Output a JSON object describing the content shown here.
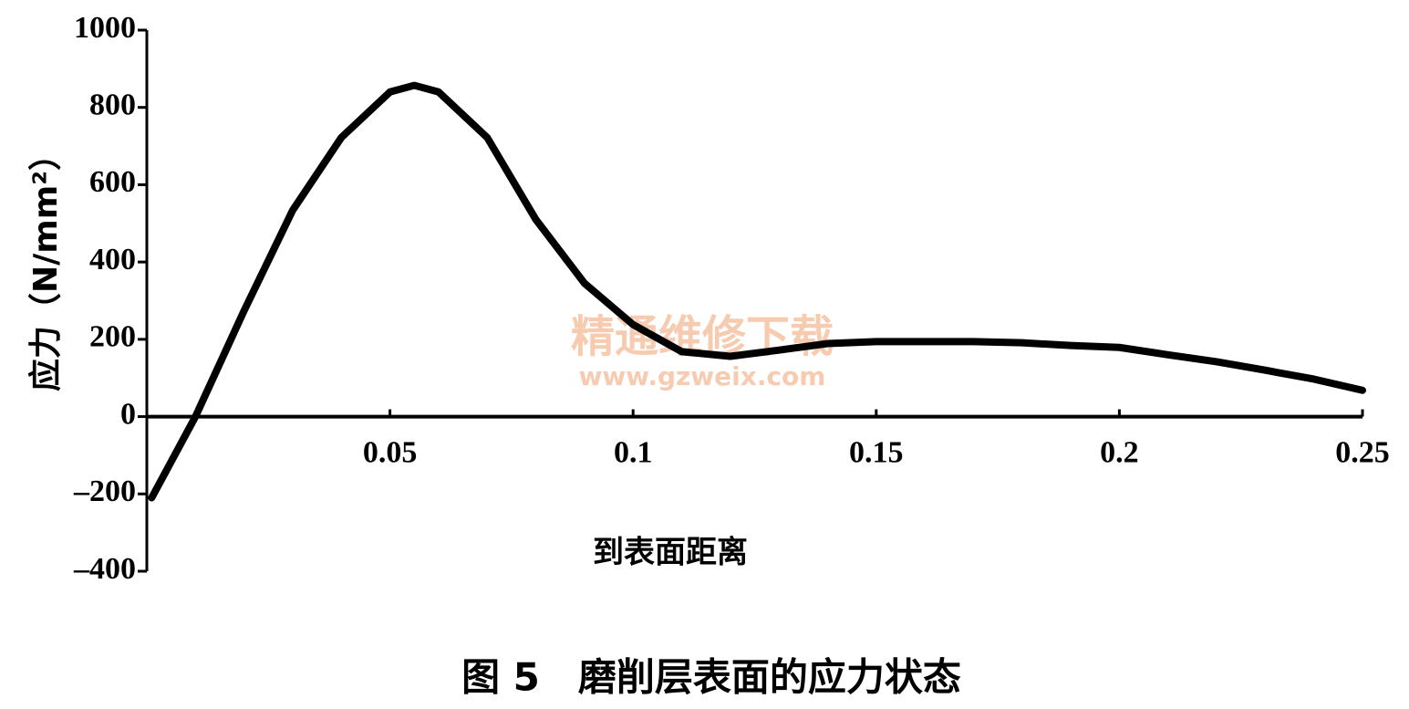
{
  "chart_data": {
    "type": "line",
    "y_label": "应力（N/mm²）",
    "x_label": "到表面距离",
    "caption": "图 5　磨削层表面的应力状态",
    "watermark": [
      "精通维修下载",
      "www.gzweix.com"
    ],
    "x": [
      0.001,
      0.01,
      0.02,
      0.03,
      0.04,
      0.05,
      0.055,
      0.06,
      0.07,
      0.08,
      0.09,
      0.1,
      0.11,
      0.12,
      0.13,
      0.14,
      0.15,
      0.16,
      0.17,
      0.18,
      0.19,
      0.2,
      0.21,
      0.22,
      0.23,
      0.24,
      0.25
    ],
    "series": [
      {
        "color": "#000000",
        "values": [
          -210,
          0,
          274,
          534,
          722,
          840,
          857,
          840,
          722,
          510,
          345,
          238,
          168,
          156,
          172,
          189,
          194,
          194,
          194,
          191,
          184,
          179,
          160,
          142,
          120,
          97,
          68
        ]
      }
    ],
    "xlim": [
      0,
      0.25
    ],
    "xticks": [
      0.05,
      0.1,
      0.15,
      0.2,
      0.25
    ],
    "ylim": [
      -400,
      1000
    ],
    "yticks": [
      1000,
      800,
      600,
      400,
      200,
      0,
      {
        "value": -200,
        "label": "–200"
      },
      {
        "value": -400,
        "label": "–400"
      }
    ]
  }
}
